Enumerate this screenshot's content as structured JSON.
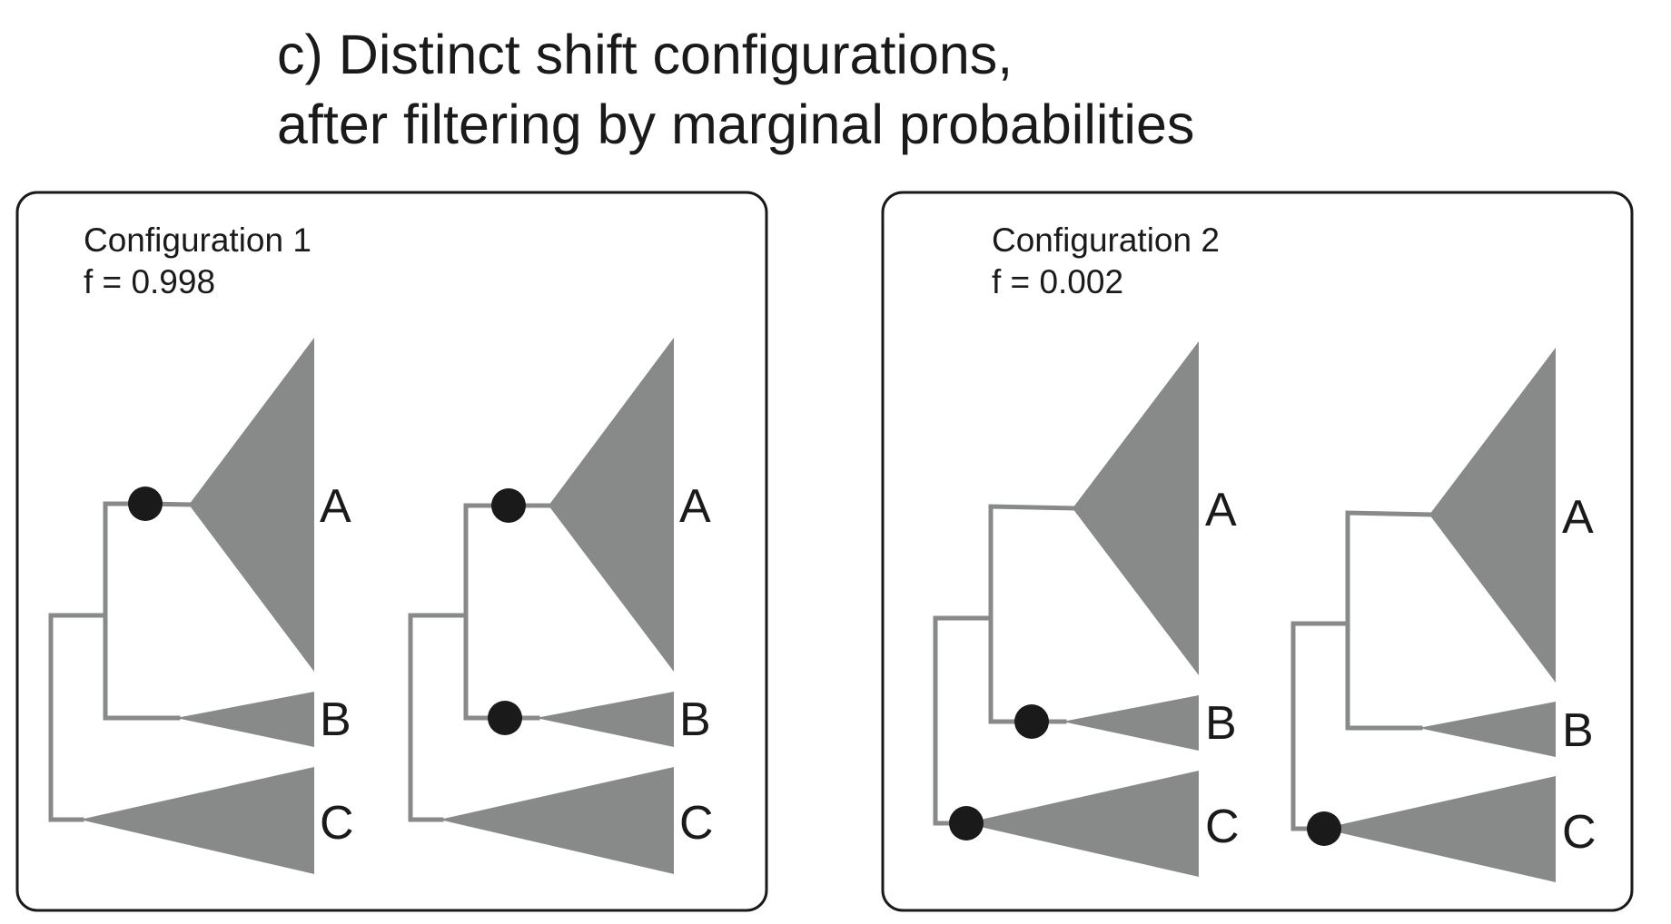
{
  "title": {
    "line1": "c) Distinct shift configurations,",
    "line2": "after filtering by marginal probabilities"
  },
  "colors": {
    "branch": "#888a89",
    "clade": "#888a89",
    "shift_dot": "#1a1a1a",
    "border": "#1a1a1a"
  },
  "panels": [
    {
      "title": "Configuration 1",
      "frequency": "f = 0.998",
      "trees": [
        {
          "labels": [
            "A",
            "B",
            "C"
          ],
          "shifts": [
            "A"
          ]
        },
        {
          "labels": [
            "A",
            "B",
            "C"
          ],
          "shifts": [
            "A",
            "B"
          ]
        }
      ]
    },
    {
      "title": "Configuration 2",
      "frequency": "f = 0.002",
      "trees": [
        {
          "labels": [
            "A",
            "B",
            "C"
          ],
          "shifts": [
            "B",
            "C"
          ]
        },
        {
          "labels": [
            "A",
            "B",
            "C"
          ],
          "shifts": [
            "C"
          ]
        }
      ]
    }
  ]
}
